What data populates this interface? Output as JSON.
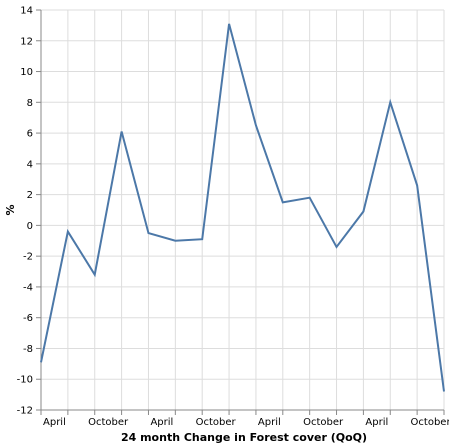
{
  "chart_data": {
    "type": "line",
    "title": "",
    "xlabel": "24 month Change in Forest cover (QoQ)",
    "ylabel": "%",
    "ylim": [
      -12,
      14
    ],
    "y_ticks": [
      -12,
      -10,
      -8,
      -6,
      -4,
      -2,
      0,
      2,
      4,
      6,
      8,
      10,
      12,
      14
    ],
    "x_tick_labels": [
      "April",
      "October",
      "April",
      "October",
      "April",
      "October",
      "April",
      "October"
    ],
    "grid": true,
    "legend": "none",
    "series": [
      {
        "color": "#4c78a8",
        "values": [
          -8.9,
          -0.4,
          -3.2,
          6.1,
          -0.5,
          -1.0,
          -0.9,
          13.1,
          6.5,
          1.5,
          1.8,
          -1.4,
          0.9,
          8.0,
          2.6,
          -10.8
        ]
      }
    ]
  }
}
